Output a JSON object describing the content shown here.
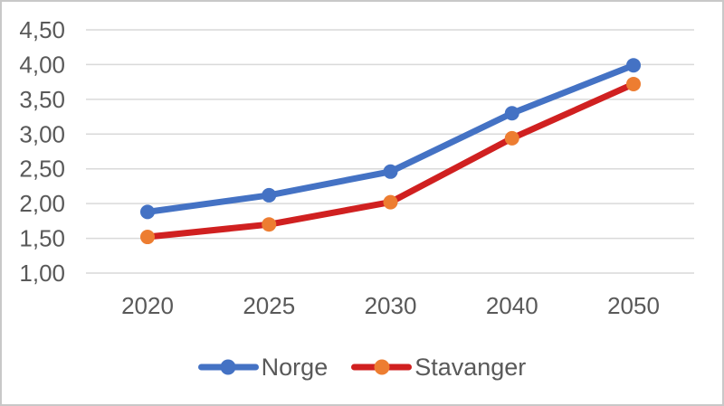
{
  "chart_data": {
    "type": "line",
    "title": "",
    "xlabel": "",
    "ylabel": "",
    "categories": [
      "2020",
      "2025",
      "2030",
      "2040",
      "2050"
    ],
    "series": [
      {
        "name": "Norge",
        "values": [
          1.88,
          2.12,
          2.46,
          3.3,
          3.99
        ],
        "line_color": "#4472C4",
        "marker_color": "#4472C4"
      },
      {
        "name": "Stavanger",
        "values": [
          1.52,
          1.7,
          2.02,
          2.94,
          3.72
        ],
        "line_color": "#D02020",
        "marker_color": "#ED7D31"
      }
    ],
    "y_ticks": [
      4.5,
      4.0,
      3.5,
      3.0,
      2.5,
      2.0,
      1.5,
      1.0
    ],
    "y_tick_labels": [
      "4,50",
      "4,00",
      "3,50",
      "3,00",
      "2,50",
      "2,00",
      "1,50",
      "1,00"
    ],
    "ylim": [
      1.0,
      4.5
    ],
    "grid": "horizontal",
    "gridline_color": "#D9D9D9",
    "axis_text_color": "#595959",
    "legend_position": "bottom-center"
  },
  "frame": {
    "background": "#FFFFFF",
    "border_color": "#C8C8C8"
  }
}
